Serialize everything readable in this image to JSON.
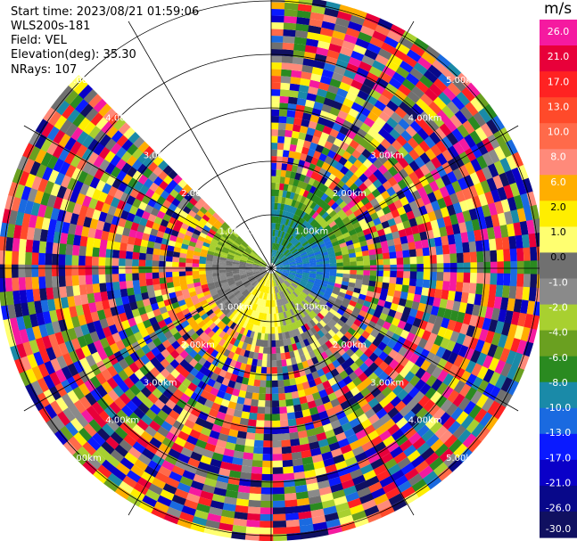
{
  "header": {
    "start_time": "Start time: 2023/08/21 01:59:06",
    "instrument": "WLS200s-181",
    "field": "Field: VEL",
    "elevation": "Elevation(deg): 35.30",
    "nrays": "NRays: 107"
  },
  "colorbar": {
    "unit": "m/s",
    "ticks": [
      "26.0",
      "21.0",
      "17.0",
      "13.0",
      "10.0",
      "8.0",
      "6.0",
      "2.0",
      "1.0",
      "0.0",
      "-1.0",
      "-2.0",
      "-4.0",
      "-6.0",
      "-8.0",
      "-10.0",
      "-13.0",
      "-17.0",
      "-21.0",
      "-26.0",
      "-30.0"
    ],
    "colors": [
      "#f51aa0",
      "#e8003a",
      "#ff2222",
      "#ff4a2a",
      "#ff6a4a",
      "#ff8a7a",
      "#ffae00",
      "#ffee00",
      "#ffff70",
      "#707070",
      "#8a8a8a",
      "#a8d030",
      "#6aa020",
      "#2a8a20",
      "#1a8aa8",
      "#1a6ae0",
      "#0a1aff",
      "#0a00c8",
      "#08088a",
      "#101060"
    ]
  },
  "chart_data": {
    "type": "ppi",
    "range_rings_labels": [
      "1.00km",
      "2.00km",
      "3.00km",
      "4.00km",
      "5.00km"
    ],
    "blank_sector_deg": [
      315,
      360
    ],
    "grid": true
  }
}
